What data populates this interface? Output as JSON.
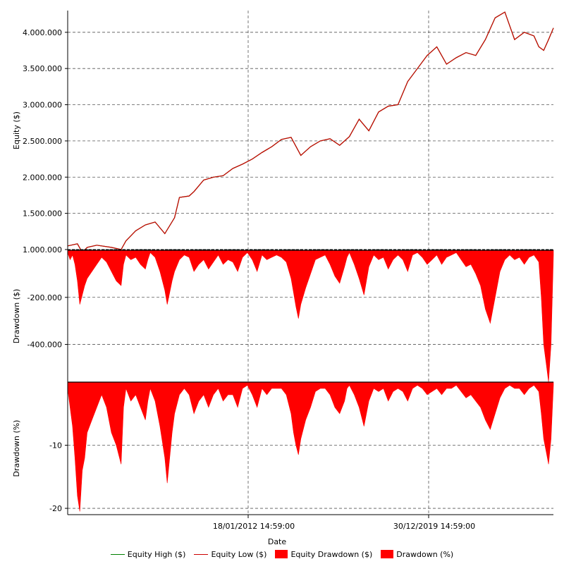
{
  "chart_data": [
    {
      "type": "line",
      "ylabel": "Equity ($)",
      "yticks": [
        "1.000.000",
        "1.500.000",
        "2.000.000",
        "2.500.000",
        "3.000.000",
        "3.500.000",
        "4.000.000"
      ],
      "ytick_values": [
        1000000,
        1500000,
        2000000,
        2500000,
        3000000,
        3500000,
        4000000
      ],
      "ylim": [
        990000,
        4300000
      ],
      "grid": true,
      "series": [
        {
          "name": "Equity High ($)",
          "color": "#008000",
          "x": [
            0,
            0.02,
            0.03,
            0.04,
            0.06,
            0.09,
            0.11,
            0.12,
            0.14,
            0.16,
            0.18,
            0.2,
            0.22,
            0.23,
            0.25,
            0.26,
            0.28,
            0.3,
            0.32,
            0.34,
            0.36,
            0.38,
            0.4,
            0.42,
            0.44,
            0.46,
            0.48,
            0.5,
            0.52,
            0.54,
            0.56,
            0.58,
            0.6,
            0.62,
            0.64,
            0.66,
            0.68,
            0.7,
            0.72,
            0.74,
            0.76,
            0.78,
            0.8,
            0.82,
            0.84,
            0.86,
            0.88,
            0.9,
            0.92,
            0.94,
            0.96,
            0.97,
            0.98,
            0.99,
            1.0
          ],
          "values": [
            1050000,
            1080000,
            960000,
            1030000,
            1060000,
            1030000,
            1000000,
            1120000,
            1260000,
            1340000,
            1380000,
            1220000,
            1440000,
            1720000,
            1740000,
            1800000,
            1960000,
            2000000,
            2020000,
            2120000,
            2180000,
            2250000,
            2340000,
            2420000,
            2520000,
            2550000,
            2300000,
            2420000,
            2500000,
            2530000,
            2440000,
            2560000,
            2800000,
            2640000,
            2900000,
            2980000,
            3000000,
            3320000,
            3500000,
            3680000,
            3800000,
            3560000,
            3650000,
            3720000,
            3680000,
            3900000,
            4200000,
            4280000,
            3900000,
            4000000,
            3950000,
            3800000,
            3750000,
            3900000,
            4060000
          ]
        },
        {
          "name": "Equity Low ($)",
          "color": "#cc0000",
          "x": [
            0,
            0.02,
            0.03,
            0.04,
            0.06,
            0.09,
            0.11,
            0.12,
            0.14,
            0.16,
            0.18,
            0.2,
            0.22,
            0.23,
            0.25,
            0.26,
            0.28,
            0.3,
            0.32,
            0.34,
            0.36,
            0.38,
            0.4,
            0.42,
            0.44,
            0.46,
            0.48,
            0.5,
            0.52,
            0.54,
            0.56,
            0.58,
            0.6,
            0.62,
            0.64,
            0.66,
            0.68,
            0.7,
            0.72,
            0.74,
            0.76,
            0.78,
            0.8,
            0.82,
            0.84,
            0.86,
            0.88,
            0.9,
            0.92,
            0.94,
            0.96,
            0.97,
            0.98,
            0.99,
            1.0
          ],
          "values": [
            1050000,
            1080000,
            960000,
            1030000,
            1060000,
            1030000,
            1000000,
            1120000,
            1260000,
            1340000,
            1380000,
            1220000,
            1440000,
            1720000,
            1740000,
            1800000,
            1960000,
            2000000,
            2020000,
            2120000,
            2180000,
            2250000,
            2340000,
            2420000,
            2520000,
            2550000,
            2300000,
            2420000,
            2500000,
            2530000,
            2440000,
            2560000,
            2800000,
            2640000,
            2900000,
            2980000,
            3000000,
            3320000,
            3500000,
            3680000,
            3800000,
            3560000,
            3650000,
            3720000,
            3680000,
            3900000,
            4200000,
            4280000,
            3900000,
            4000000,
            3950000,
            3800000,
            3750000,
            3900000,
            4060000
          ]
        }
      ]
    },
    {
      "type": "area",
      "ylabel": "Drawdown ($)",
      "yticks": [
        "-200.000",
        "-400.000"
      ],
      "ytick_values": [
        -200000,
        -400000
      ],
      "ylim": [
        -560000,
        0
      ],
      "grid": true,
      "series": [
        {
          "name": "Equity Drawdown ($)",
          "color": "#ff0000",
          "x": [
            0,
            0.005,
            0.01,
            0.015,
            0.02,
            0.025,
            0.03,
            0.035,
            0.04,
            0.05,
            0.06,
            0.07,
            0.08,
            0.09,
            0.1,
            0.11,
            0.115,
            0.12,
            0.13,
            0.14,
            0.15,
            0.16,
            0.165,
            0.17,
            0.18,
            0.19,
            0.2,
            0.205,
            0.21,
            0.215,
            0.22,
            0.23,
            0.24,
            0.25,
            0.26,
            0.27,
            0.28,
            0.29,
            0.3,
            0.31,
            0.32,
            0.33,
            0.34,
            0.35,
            0.36,
            0.37,
            0.38,
            0.39,
            0.4,
            0.41,
            0.42,
            0.43,
            0.44,
            0.45,
            0.46,
            0.465,
            0.47,
            0.475,
            0.48,
            0.49,
            0.5,
            0.51,
            0.52,
            0.53,
            0.54,
            0.55,
            0.56,
            0.57,
            0.575,
            0.58,
            0.59,
            0.6,
            0.61,
            0.62,
            0.63,
            0.64,
            0.65,
            0.66,
            0.67,
            0.68,
            0.69,
            0.7,
            0.71,
            0.72,
            0.73,
            0.74,
            0.75,
            0.76,
            0.77,
            0.78,
            0.79,
            0.8,
            0.81,
            0.82,
            0.83,
            0.84,
            0.85,
            0.86,
            0.87,
            0.88,
            0.89,
            0.9,
            0.91,
            0.92,
            0.93,
            0.94,
            0.95,
            0.96,
            0.97,
            0.975,
            0.98,
            0.985,
            0.99,
            0.995,
            1.0
          ],
          "values": [
            -10000,
            -40000,
            -20000,
            -60000,
            -130000,
            -230000,
            -190000,
            -150000,
            -120000,
            -90000,
            -60000,
            -30000,
            -50000,
            -90000,
            -130000,
            -150000,
            -60000,
            -20000,
            -40000,
            -30000,
            -60000,
            -80000,
            -40000,
            -10000,
            -30000,
            -90000,
            -170000,
            -230000,
            -180000,
            -130000,
            -90000,
            -40000,
            -20000,
            -30000,
            -90000,
            -60000,
            -40000,
            -80000,
            -50000,
            -20000,
            -60000,
            -40000,
            -50000,
            -90000,
            -30000,
            -10000,
            -40000,
            -90000,
            -20000,
            -40000,
            -30000,
            -20000,
            -30000,
            -50000,
            -120000,
            -180000,
            -240000,
            -290000,
            -230000,
            -160000,
            -100000,
            -40000,
            -30000,
            -20000,
            -60000,
            -110000,
            -140000,
            -70000,
            -30000,
            -10000,
            -60000,
            -120000,
            -190000,
            -70000,
            -20000,
            -40000,
            -30000,
            -80000,
            -40000,
            -20000,
            -40000,
            -90000,
            -20000,
            -10000,
            -30000,
            -60000,
            -40000,
            -20000,
            -60000,
            -30000,
            -20000,
            -10000,
            -40000,
            -70000,
            -60000,
            -100000,
            -150000,
            -250000,
            -310000,
            -200000,
            -90000,
            -40000,
            -20000,
            -40000,
            -30000,
            -60000,
            -30000,
            -20000,
            -50000,
            -200000,
            -400000,
            -480000,
            -560000,
            -400000,
            -20000
          ]
        }
      ]
    },
    {
      "type": "area",
      "ylabel": "Drawdown (%)",
      "yticks": [
        "-10",
        "-20"
      ],
      "ytick_values": [
        -10,
        -20
      ],
      "ylim": [
        -21,
        0
      ],
      "grid": true,
      "xticks": [
        "18/01/2012 14:59:00",
        "30/12/2019 14:59:00"
      ],
      "xlabel": "Date",
      "series": [
        {
          "name": "Drawdown (%)",
          "color": "#ff0000",
          "x": [
            0,
            0.005,
            0.01,
            0.015,
            0.02,
            0.025,
            0.03,
            0.035,
            0.04,
            0.05,
            0.06,
            0.07,
            0.08,
            0.09,
            0.1,
            0.11,
            0.115,
            0.12,
            0.13,
            0.14,
            0.15,
            0.16,
            0.165,
            0.17,
            0.18,
            0.19,
            0.2,
            0.205,
            0.21,
            0.215,
            0.22,
            0.23,
            0.24,
            0.25,
            0.26,
            0.27,
            0.28,
            0.29,
            0.3,
            0.31,
            0.32,
            0.33,
            0.34,
            0.35,
            0.36,
            0.37,
            0.38,
            0.39,
            0.4,
            0.41,
            0.42,
            0.43,
            0.44,
            0.45,
            0.46,
            0.465,
            0.47,
            0.475,
            0.48,
            0.49,
            0.5,
            0.51,
            0.52,
            0.53,
            0.54,
            0.55,
            0.56,
            0.57,
            0.575,
            0.58,
            0.59,
            0.6,
            0.61,
            0.62,
            0.63,
            0.64,
            0.65,
            0.66,
            0.67,
            0.68,
            0.69,
            0.7,
            0.71,
            0.72,
            0.73,
            0.74,
            0.75,
            0.76,
            0.77,
            0.78,
            0.79,
            0.8,
            0.81,
            0.82,
            0.83,
            0.84,
            0.85,
            0.86,
            0.87,
            0.88,
            0.89,
            0.9,
            0.91,
            0.92,
            0.93,
            0.94,
            0.95,
            0.96,
            0.97,
            0.975,
            0.98,
            0.985,
            0.99,
            0.995,
            1.0
          ],
          "values": [
            -1,
            -4,
            -7,
            -12,
            -18,
            -20.5,
            -14,
            -12,
            -8,
            -6,
            -4,
            -2,
            -4,
            -8,
            -10,
            -13,
            -4,
            -1,
            -3,
            -2,
            -4,
            -6,
            -3,
            -1,
            -3,
            -7,
            -12,
            -16,
            -12,
            -8,
            -5,
            -2,
            -1,
            -2,
            -5,
            -3,
            -2,
            -4,
            -2,
            -1,
            -3,
            -2,
            -2,
            -4,
            -1,
            -0.5,
            -2,
            -4,
            -1,
            -2,
            -1,
            -1,
            -1,
            -2,
            -5,
            -8,
            -10,
            -11.5,
            -9,
            -6,
            -4,
            -1.5,
            -1,
            -1,
            -2,
            -4,
            -5,
            -3,
            -1,
            -0.5,
            -2,
            -4,
            -7,
            -3,
            -1,
            -1.5,
            -1,
            -3,
            -1.5,
            -1,
            -1.5,
            -3,
            -1,
            -0.5,
            -1,
            -2,
            -1.5,
            -1,
            -2,
            -1,
            -1,
            -0.5,
            -1.5,
            -2.5,
            -2,
            -3,
            -4,
            -6,
            -7.5,
            -5,
            -2.5,
            -1,
            -0.5,
            -1,
            -1,
            -2,
            -1,
            -0.5,
            -1.5,
            -5,
            -9,
            -11,
            -13,
            -9,
            -0.5
          ]
        }
      ]
    }
  ],
  "legend": [
    {
      "label": "Equity High ($)",
      "kind": "line",
      "color": "#008000"
    },
    {
      "label": "Equity Low ($)",
      "kind": "line",
      "color": "#cc0000"
    },
    {
      "label": "Equity Drawdown ($)",
      "kind": "box",
      "color": "#ff0000"
    },
    {
      "label": "Drawdown (%)",
      "kind": "box",
      "color": "#ff0000"
    }
  ]
}
